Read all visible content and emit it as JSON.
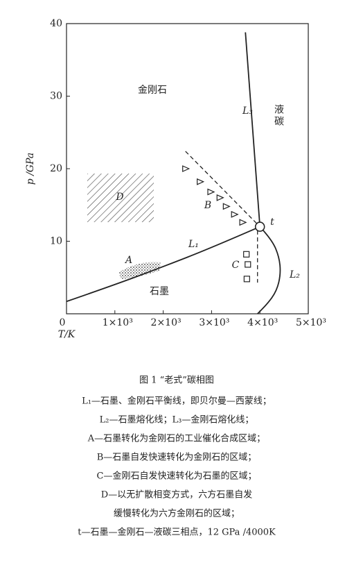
{
  "chart_data": {
    "type": "line",
    "xlabel": "T/K",
    "ylabel": "p /GPa",
    "xlim": [
      0,
      5000
    ],
    "ylim": [
      0,
      40
    ],
    "xticks": [
      0,
      {
        "value": 1000,
        "label": "1×10³"
      },
      {
        "value": 2000,
        "label": "2×10³"
      },
      {
        "value": 3000,
        "label": "3×10³"
      },
      {
        "value": 4000,
        "label": "4×10³"
      },
      {
        "value": 5000,
        "label": "5×10³"
      }
    ],
    "yticks": [
      0,
      10,
      20,
      30,
      40
    ],
    "series": [
      {
        "name": "L₁",
        "color": "#222222",
        "x": [
          0,
          1000,
          2000,
          3000,
          4000
        ],
        "values": [
          1.7,
          4.0,
          6.5,
          9.1,
          12
        ]
      },
      {
        "name": "L₂",
        "color": "#222222",
        "x": [
          4000,
          4250,
          4400,
          4430,
          4350,
          4150,
          3950
        ],
        "values": [
          12,
          10.2,
          7.8,
          5.5,
          3.2,
          1.3,
          0
        ]
      },
      {
        "name": "L₃",
        "color": "#222222",
        "x": [
          4000,
          3850,
          3700
        ],
        "values": [
          12,
          25,
          38.8
        ]
      },
      {
        "color": "#222222",
        "style": "dashed",
        "x": [
          2460,
          4000
        ],
        "values": [
          22.4,
          12
        ]
      },
      {
        "color": "#222222",
        "style": "dashed",
        "x": [
          3950,
          3950
        ],
        "values": [
          11.5,
          4.3
        ]
      },
      {
        "color": "#222222",
        "marker": "triangle",
        "x": [
          2460,
          2760,
          2980,
          3170,
          3300,
          3470,
          3640
        ],
        "values": [
          20,
          18.2,
          16.8,
          16,
          14.8,
          13.7,
          12.6
        ]
      },
      {
        "color": "#222222",
        "marker": "square",
        "x": [
          3720,
          3750,
          3730
        ],
        "values": [
          8.2,
          6.8,
          4.8
        ]
      },
      {
        "color": "#222222",
        "marker": "circle",
        "x": [
          4000
        ],
        "values": [
          12
        ]
      }
    ],
    "annotations": [
      "金刚石",
      "石墨",
      "液碳",
      "A",
      "B",
      "C",
      "D",
      "t"
    ]
  },
  "caption": {
    "title": "图 1 “老式”碳相图",
    "lines": [
      "L₁—石墨、金刚石平衡线，即贝尔曼—西蒙线；",
      "L₂—石墨熔化线；L₃—金刚石熔化线；",
      "A—石墨转化为金刚石的工业催化合成区域；",
      "B—石墨自发快速转化为金刚石的区域；",
      "C—金刚石自发快速转化为石墨的区域；",
      "D—以无扩散相变方式，六方石墨自发",
      "缓慢转化为六方金刚石的区域；",
      "t—石墨—金刚石—液碳三相点，12 GPa /4000K"
    ]
  }
}
